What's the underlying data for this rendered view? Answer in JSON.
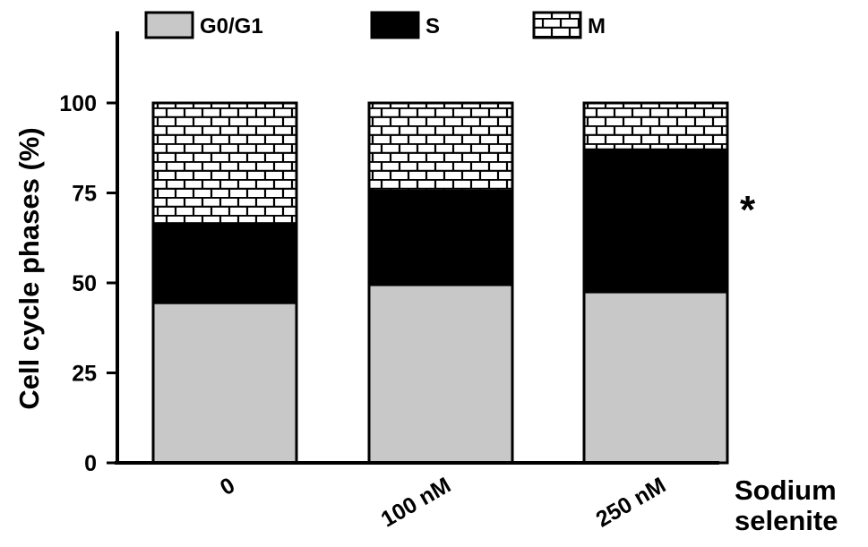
{
  "chart_data": {
    "type": "bar",
    "stacked": true,
    "categories": [
      "0",
      "100 nM",
      "250 nM"
    ],
    "series": [
      {
        "name": "G0/G1",
        "values": [
          44.5,
          49.5,
          47.5
        ],
        "color": "#c8c8c8",
        "pattern": "solid"
      },
      {
        "name": "S",
        "values": [
          22,
          26,
          39.5
        ],
        "color": "#000000",
        "pattern": "solid"
      },
      {
        "name": "M",
        "values": [
          33.5,
          24.5,
          13
        ],
        "color": "#ffffff",
        "pattern": "brick"
      }
    ],
    "ylabel": "Cell cycle phases (%)",
    "xlabel_lines": [
      "Sodium",
      "selenite"
    ],
    "yticks": [
      "0",
      "25",
      "50",
      "75",
      "100"
    ],
    "ylim": [
      0,
      120
    ],
    "legend_position": "top",
    "annotations": [
      {
        "text": "*",
        "category": "250 nM"
      }
    ],
    "grid": false
  }
}
